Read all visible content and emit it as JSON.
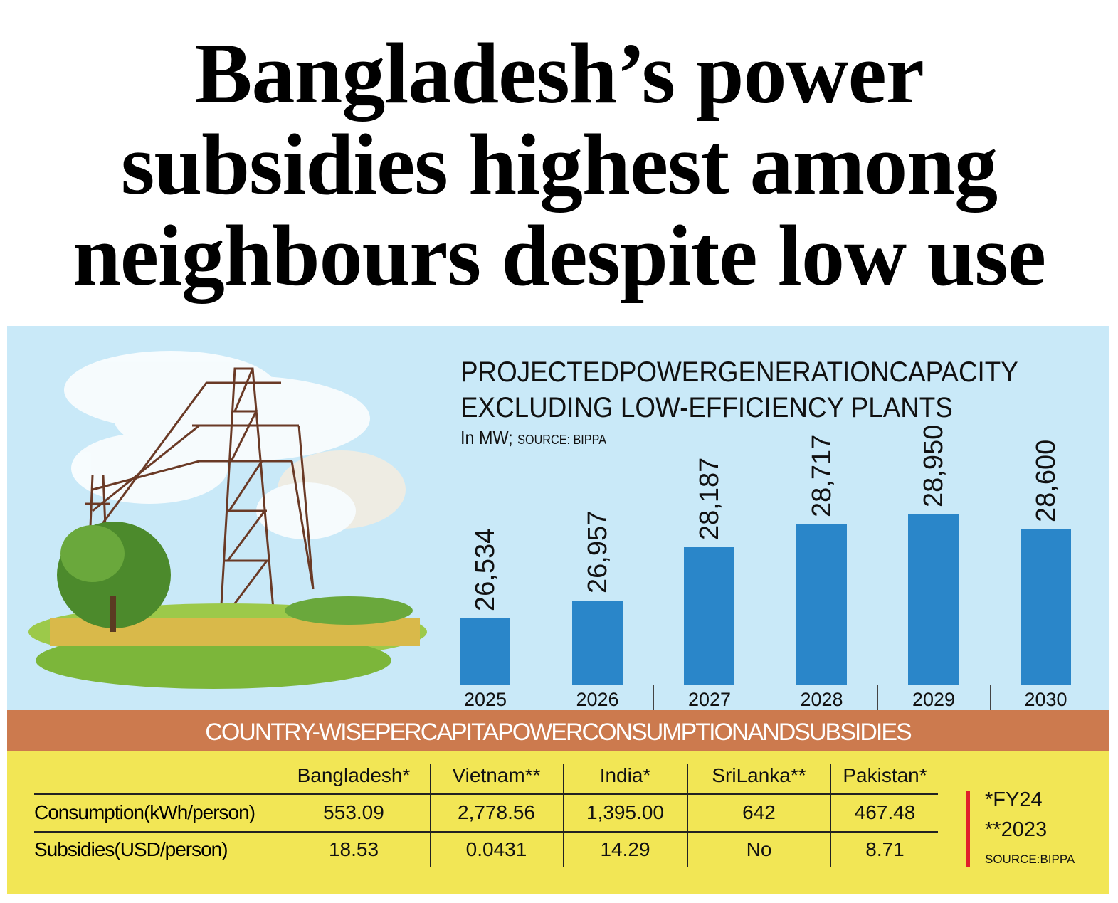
{
  "headline": {
    "line1": "Bangladesh’s power",
    "line2": "subsidies highest among",
    "line3": "neighbours despite low use"
  },
  "chart_data": {
    "type": "bar",
    "title_line1": "PROJECTEDPOWERGENERATIONCAPACITY",
    "title_line2": "EXCLUDING LOW-EFFICIENCY PLANTS",
    "unit": "In MW;",
    "source": "SOURCE: BIPPA",
    "categories": [
      "2025",
      "2026",
      "2027",
      "2028",
      "2029",
      "2030"
    ],
    "values": [
      26534,
      26957,
      28187,
      28717,
      28950,
      28600
    ],
    "value_labels": [
      "26,534",
      "26,957",
      "28,187",
      "28,717",
      "28,950",
      "28,600"
    ],
    "xlabel": "",
    "ylabel": "MW",
    "ylim": [
      25000,
      29000
    ],
    "bar_color": "#2a86c9",
    "grid": false
  },
  "table": {
    "title": "COUNTRY-WISEPERCAPITAPOWERCONSUMPTIONANDSUBSIDIES",
    "columns": [
      "Bangladesh*",
      "Vietnam**",
      "India*",
      "SriLanka**",
      "Pakistan*"
    ],
    "rows": [
      {
        "label": "Consumption(kWh/person)",
        "values": [
          "553.09",
          "2,778.56",
          "1,395.00",
          "642",
          "467.48"
        ]
      },
      {
        "label": "Subsidies(USD/person)",
        "values": [
          "18.53",
          "0.0431",
          "14.29",
          "No",
          "8.71"
        ]
      }
    ],
    "notes": {
      "note1": "*FY24",
      "note2": "**2023",
      "source": "SOURCE:BIPPA"
    }
  },
  "colors": {
    "panel": "#c9e9f8",
    "band": "#cc7a4e",
    "table_bg": "#f2e655",
    "accent_red": "#e0202a"
  }
}
